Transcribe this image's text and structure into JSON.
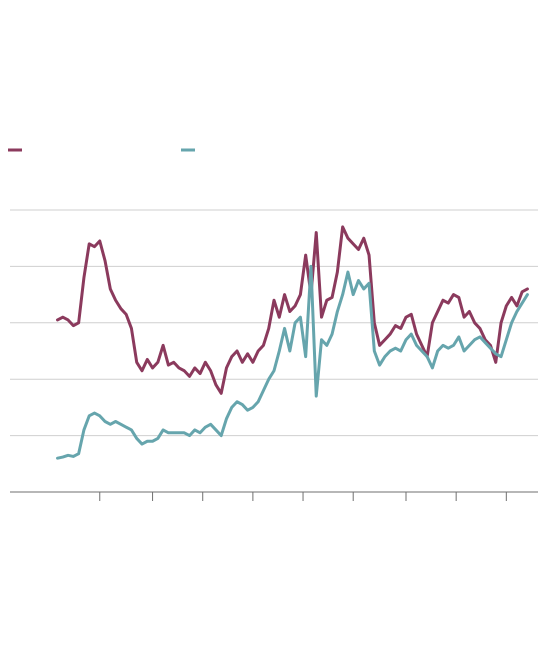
{
  "chart_data": {
    "type": "line",
    "title": "",
    "subtitle": "",
    "xlabel": "",
    "ylabel": "",
    "grid": true,
    "legend": "top-left",
    "ylim": [
      0,
      5
    ],
    "xlim": [
      0,
      100
    ],
    "gridlines": [
      1,
      2,
      3,
      4,
      5
    ],
    "x_ticks": [
      17,
      27,
      36.5,
      46,
      55.5,
      65,
      75,
      84.5,
      94
    ],
    "series": [
      {
        "color": "#8b3a5d",
        "x": [
          9,
          10,
          11,
          12,
          13,
          14,
          15,
          16,
          17,
          18,
          19,
          20,
          21,
          22,
          23,
          24,
          25,
          26,
          27,
          28,
          29,
          30,
          31,
          32,
          33,
          34,
          35,
          36,
          37,
          38,
          39,
          40,
          41,
          42,
          43,
          44,
          45,
          46,
          47,
          48,
          49,
          50,
          51,
          52,
          53,
          54,
          55,
          56,
          57,
          58,
          59,
          60,
          61,
          62,
          63,
          64,
          65,
          66,
          67,
          68,
          69,
          70,
          71,
          72,
          73,
          74,
          75,
          76,
          77,
          78,
          79,
          80,
          81,
          82,
          83,
          84,
          85,
          86,
          87,
          88,
          89,
          90,
          91,
          92,
          93,
          94,
          95,
          96,
          97,
          98
        ],
        "values": [
          3.05,
          3.1,
          3.05,
          2.95,
          3.0,
          3.8,
          4.4,
          4.35,
          4.45,
          4.1,
          3.6,
          3.4,
          3.25,
          3.15,
          2.9,
          2.3,
          2.15,
          2.35,
          2.2,
          2.3,
          2.6,
          2.25,
          2.3,
          2.2,
          2.15,
          2.05,
          2.2,
          2.1,
          2.3,
          2.15,
          1.9,
          1.75,
          2.2,
          2.4,
          2.5,
          2.3,
          2.45,
          2.3,
          2.5,
          2.6,
          2.9,
          3.4,
          3.1,
          3.5,
          3.2,
          3.3,
          3.5,
          4.2,
          3.5,
          4.6,
          3.1,
          3.4,
          3.45,
          3.9,
          4.7,
          4.5,
          4.4,
          4.3,
          4.5,
          4.2,
          3.0,
          2.6,
          2.7,
          2.8,
          2.95,
          2.9,
          3.1,
          3.15,
          2.8,
          2.6,
          2.4,
          3.0,
          3.2,
          3.4,
          3.35,
          3.5,
          3.45,
          3.1,
          3.2,
          3.0,
          2.9,
          2.7,
          2.6,
          2.3,
          3.0,
          3.3,
          3.45,
          3.3,
          3.55,
          3.6
        ],
        "name": ""
      },
      {
        "color": "#66a5ad",
        "x": [
          9,
          10,
          11,
          12,
          13,
          14,
          15,
          16,
          17,
          18,
          19,
          20,
          21,
          22,
          23,
          24,
          25,
          26,
          27,
          28,
          29,
          30,
          31,
          32,
          33,
          34,
          35,
          36,
          37,
          38,
          39,
          40,
          41,
          42,
          43,
          44,
          45,
          46,
          47,
          48,
          49,
          50,
          51,
          52,
          53,
          54,
          55,
          56,
          57,
          58,
          59,
          60,
          61,
          62,
          63,
          64,
          65,
          66,
          67,
          68,
          69,
          70,
          71,
          72,
          73,
          74,
          75,
          76,
          77,
          78,
          79,
          80,
          81,
          82,
          83,
          84,
          85,
          86,
          87,
          88,
          89,
          90,
          91,
          92,
          93,
          94,
          95,
          96,
          97,
          98
        ],
        "values": [
          0.6,
          0.62,
          0.65,
          0.63,
          0.68,
          1.1,
          1.35,
          1.4,
          1.35,
          1.25,
          1.2,
          1.25,
          1.2,
          1.15,
          1.1,
          0.95,
          0.85,
          0.9,
          0.9,
          0.95,
          1.1,
          1.05,
          1.05,
          1.05,
          1.05,
          1.0,
          1.1,
          1.05,
          1.15,
          1.2,
          1.1,
          1.0,
          1.3,
          1.5,
          1.6,
          1.55,
          1.45,
          1.5,
          1.6,
          1.8,
          2.0,
          2.15,
          2.5,
          2.9,
          2.5,
          3.0,
          3.1,
          2.4,
          4.0,
          1.7,
          2.7,
          2.6,
          2.8,
          3.2,
          3.5,
          3.9,
          3.5,
          3.75,
          3.6,
          3.7,
          2.5,
          2.25,
          2.4,
          2.5,
          2.55,
          2.5,
          2.7,
          2.8,
          2.6,
          2.5,
          2.4,
          2.2,
          2.5,
          2.6,
          2.55,
          2.6,
          2.75,
          2.5,
          2.6,
          2.7,
          2.75,
          2.65,
          2.55,
          2.45,
          2.4,
          2.7,
          3.0,
          3.2,
          3.35,
          3.5
        ],
        "label": ""
      }
    ]
  }
}
